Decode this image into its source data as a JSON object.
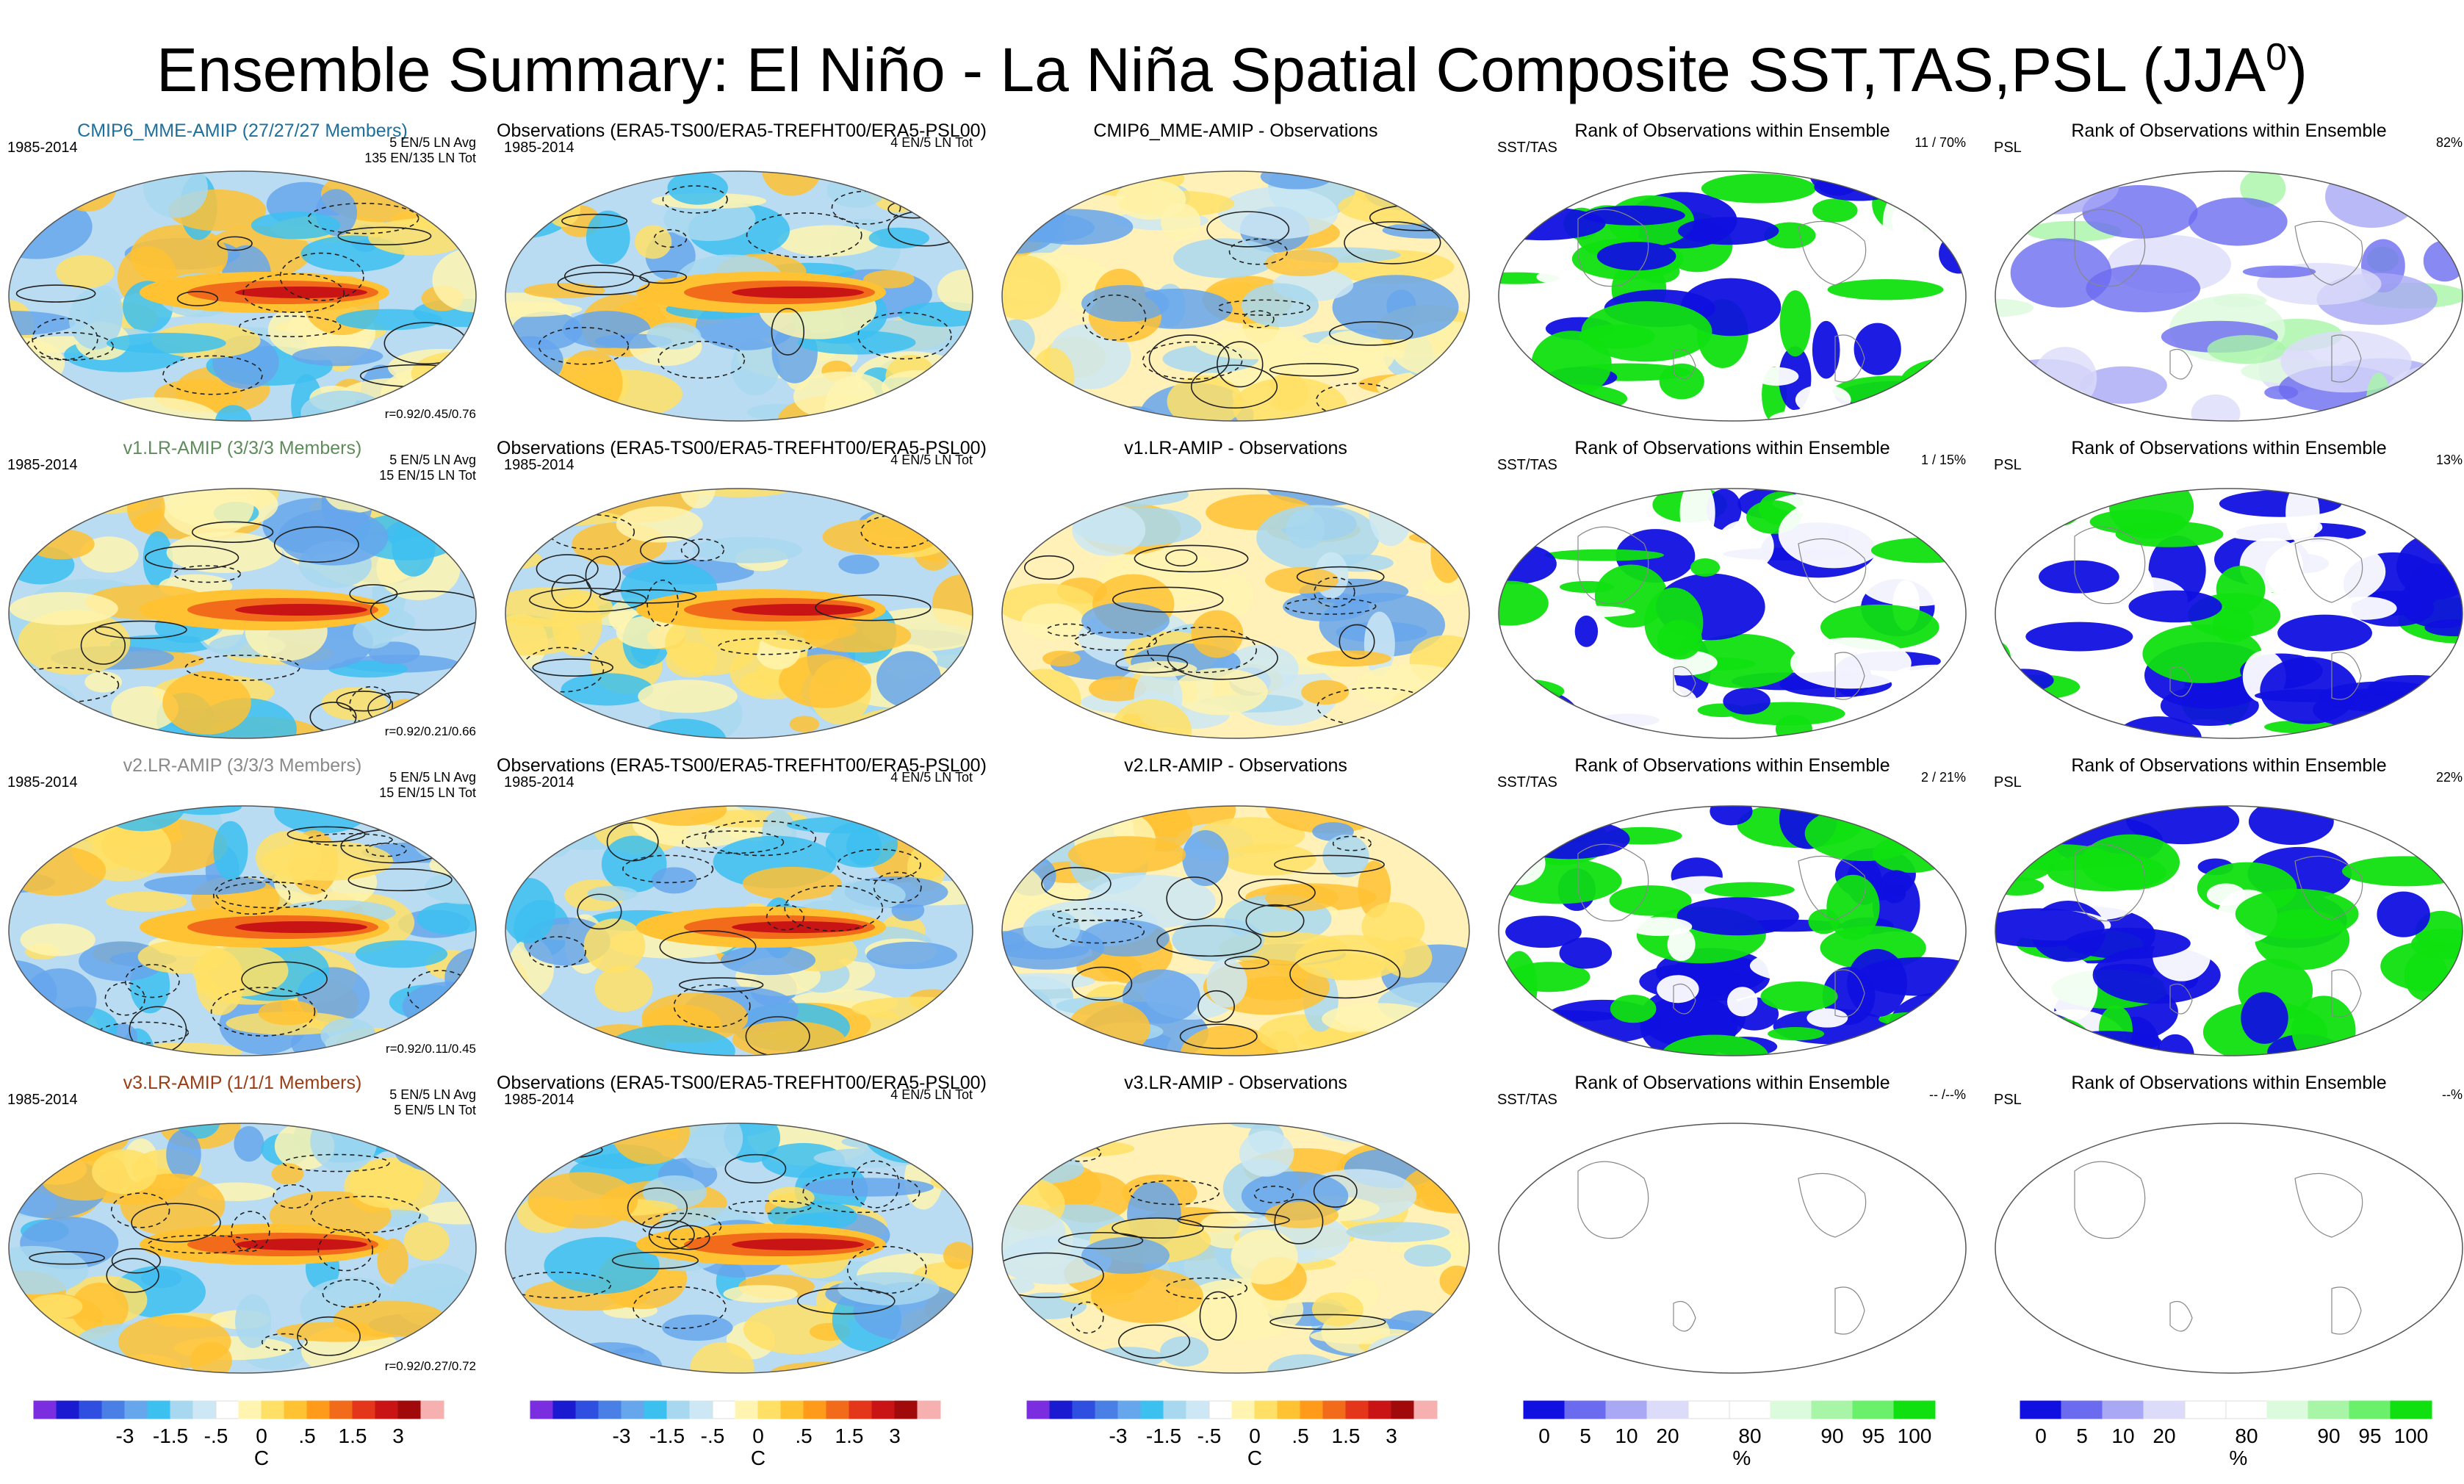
{
  "title": {
    "main": "Ensemble Summary: El Niño - La Niña Spatial Composite SST,TAS,PSL (JJA",
    "sup": "0",
    "close": ")"
  },
  "rows": [
    {
      "model": {
        "title": "CMIP6_MME-AMIP (27/27/27 Members)",
        "title_color": "#1f6f9c",
        "period": "1985-2014",
        "info1": "5 EN/5 LN Avg",
        "info2": "135 EN/135 LN Tot",
        "corr": "r=0.92/0.45/0.76"
      },
      "obs": {
        "title": "Observations (ERA5-TS00/ERA5-TREFHT00/ERA5-PSL00)",
        "period": "1985-2014",
        "info1": "4 EN/5 LN Tot"
      },
      "diff": {
        "title": "CMIP6_MME-AMIP - Observations"
      },
      "rank1": {
        "title": "Rank of Observations within Ensemble",
        "left": "SST/TAS",
        "right": "11 /  70%"
      },
      "rank2": {
        "title": "Rank of Observations within Ensemble",
        "left": "PSL",
        "right": "82%"
      }
    },
    {
      "model": {
        "title": "v1.LR-AMIP (3/3/3 Members)",
        "title_color": "#5e8c5a",
        "period": "1985-2014",
        "info1": "5 EN/5 LN Avg",
        "info2": "15 EN/15 LN Tot",
        "corr": "r=0.92/0.21/0.66"
      },
      "obs": {
        "title": "Observations (ERA5-TS00/ERA5-TREFHT00/ERA5-PSL00)",
        "period": "1985-2014",
        "info1": "4 EN/5 LN Tot"
      },
      "diff": {
        "title": "v1.LR-AMIP - Observations"
      },
      "rank1": {
        "title": "Rank of Observations within Ensemble",
        "left": "SST/TAS",
        "right": "1 /  15%"
      },
      "rank2": {
        "title": "Rank of Observations within Ensemble",
        "left": "PSL",
        "right": "13%"
      }
    },
    {
      "model": {
        "title": "v2.LR-AMIP (3/3/3 Members)",
        "title_color": "#8a8a8a",
        "period": "1985-2014",
        "info1": "5 EN/5 LN Avg",
        "info2": "15 EN/15 LN Tot",
        "corr": "r=0.92/0.11/0.45"
      },
      "obs": {
        "title": "Observations (ERA5-TS00/ERA5-TREFHT00/ERA5-PSL00)",
        "period": "1985-2014",
        "info1": "4 EN/5 LN Tot"
      },
      "diff": {
        "title": "v2.LR-AMIP - Observations"
      },
      "rank1": {
        "title": "Rank of Observations within Ensemble",
        "left": "SST/TAS",
        "right": "2 /  21%"
      },
      "rank2": {
        "title": "Rank of Observations within Ensemble",
        "left": "PSL",
        "right": "22%"
      }
    },
    {
      "model": {
        "title": "v3.LR-AMIP (1/1/1 Members)",
        "title_color": "#9a3d14",
        "period": "1985-2014",
        "info1": "5 EN/5 LN Avg",
        "info2": "5 EN/5 LN Tot",
        "corr": "r=0.92/0.27/0.72"
      },
      "obs": {
        "title": "Observations (ERA5-TS00/ERA5-TREFHT00/ERA5-PSL00)",
        "period": "1985-2014",
        "info1": "4 EN/5 LN Tot"
      },
      "diff": {
        "title": "v3.LR-AMIP - Observations"
      },
      "rank1": {
        "title": "Rank of Observations within Ensemble",
        "left": "SST/TAS",
        "right": "-- /--%"
      },
      "rank2": {
        "title": "Rank of Observations within Ensemble",
        "left": "PSL",
        "right": "--%"
      }
    }
  ],
  "temp_colorbar": {
    "colors": [
      "#7b2ee0",
      "#1a1ad0",
      "#2e4fe0",
      "#4a7fe6",
      "#66a6ec",
      "#3cc0f0",
      "#a8d8f0",
      "#cde7f5",
      "#ffffff",
      "#fff5b0",
      "#ffe066",
      "#ffc233",
      "#ff9a1a",
      "#f26b1a",
      "#e3361a",
      "#c81414",
      "#a00a0a",
      "#f6b0b0"
    ],
    "ticks": [
      "-3",
      "-1.5",
      "-.5",
      "0",
      ".5",
      "1.5",
      "3"
    ],
    "unit": "C"
  },
  "rank_colorbar": {
    "colors": [
      "#1010e0",
      "#6b6bf0",
      "#a8a8f5",
      "#dcdcfa",
      "#ffffff",
      "#ffffff",
      "#dcfadc",
      "#a8f5a8",
      "#6bf06b",
      "#10e010"
    ],
    "ticks": [
      "0",
      "5",
      "10",
      "20",
      "80",
      "90",
      "95",
      "100"
    ],
    "unit": "%"
  },
  "chart_data": {
    "type": "heatmap",
    "description_units": "C (temperature composites) and % (rank of observations)",
    "panels": [
      {
        "row": 1,
        "column": "model",
        "title": "CMIP6_MME-AMIP (27/27/27 Members)",
        "period": "1985-2014",
        "pattern_correlation": "r=0.92/0.45/0.76"
      },
      {
        "row": 1,
        "column": "rank_sst_tas",
        "rank": "11",
        "percent": 70
      },
      {
        "row": 1,
        "column": "rank_psl",
        "percent": 82
      },
      {
        "row": 2,
        "column": "model",
        "title": "v1.LR-AMIP (3/3/3 Members)",
        "period": "1985-2014",
        "pattern_correlation": "r=0.92/0.21/0.66"
      },
      {
        "row": 2,
        "column": "rank_sst_tas",
        "rank": "1",
        "percent": 15
      },
      {
        "row": 2,
        "column": "rank_psl",
        "percent": 13
      },
      {
        "row": 3,
        "column": "model",
        "title": "v2.LR-AMIP (3/3/3 Members)",
        "period": "1985-2014",
        "pattern_correlation": "r=0.92/0.11/0.45"
      },
      {
        "row": 3,
        "column": "rank_sst_tas",
        "rank": "2",
        "percent": 21
      },
      {
        "row": 3,
        "column": "rank_psl",
        "percent": 22
      },
      {
        "row": 4,
        "column": "model",
        "title": "v3.LR-AMIP (1/1/1 Members)",
        "period": "1985-2014",
        "pattern_correlation": "r=0.92/0.27/0.72"
      }
    ],
    "temp_scale_ticks": [
      -3,
      -1.5,
      -0.5,
      0,
      0.5,
      1.5,
      3
    ],
    "rank_scale_ticks": [
      0,
      5,
      10,
      20,
      80,
      90,
      95,
      100
    ]
  }
}
